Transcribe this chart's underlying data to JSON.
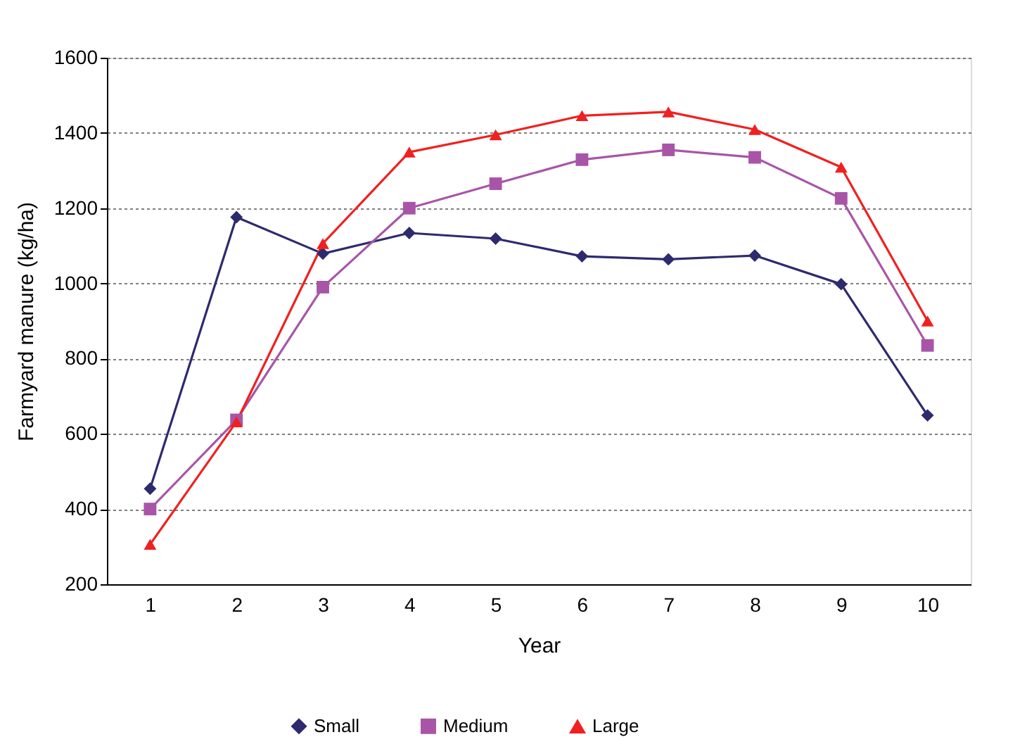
{
  "chart_data": {
    "type": "line",
    "xlabel": "Year",
    "ylabel": "Farmyard manure (kg/ha)",
    "categories": [
      "1",
      "2",
      "3",
      "4",
      "5",
      "6",
      "7",
      "8",
      "9",
      "10"
    ],
    "series": [
      {
        "name": "Small",
        "color": "#2e2a6e",
        "marker": "diamond",
        "values": [
          454,
          1176,
          1079,
          1134,
          1119,
          1072,
          1064,
          1074,
          998,
          649
        ]
      },
      {
        "name": "Medium",
        "color": "#a855a8",
        "marker": "square",
        "values": [
          400,
          637,
          990,
          1200,
          1265,
          1329,
          1355,
          1335,
          1226,
          835
        ]
      },
      {
        "name": "Large",
        "color": "#f02020",
        "marker": "triangle",
        "values": [
          306,
          632,
          1106,
          1349,
          1395,
          1446,
          1456,
          1409,
          1309,
          900
        ]
      }
    ],
    "ylim": [
      200,
      1600
    ],
    "yticks": [
      200,
      400,
      600,
      800,
      1000,
      1200,
      1400,
      1600
    ],
    "grid": "y",
    "legend": "bottom",
    "line_style": "solid"
  }
}
